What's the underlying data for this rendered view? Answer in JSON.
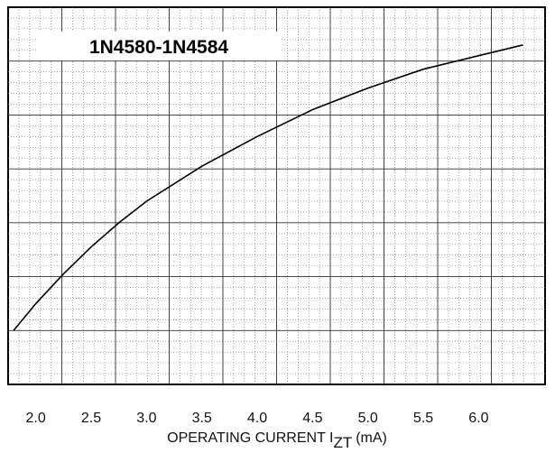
{
  "chart_data": {
    "type": "line",
    "title": "1N4580-1N4584",
    "xlabel": "OPERATING CURRENT I",
    "xlabel_subscript": "ZT",
    "xlabel_unit": "(mA)",
    "ylabel": "",
    "x_ticks": [
      "2.0",
      "2.5",
      "3.0",
      "3.5",
      "4.0",
      "4.5",
      "5.0",
      "5.5",
      "6.0"
    ],
    "xlim": [
      1.75,
      6.6
    ],
    "ylim": [
      0,
      7
    ],
    "grid": true,
    "series": [
      {
        "x": [
          1.8,
          2.0,
          2.25,
          2.5,
          2.75,
          3.0,
          3.5,
          4.0,
          4.5,
          5.0,
          5.5,
          6.0,
          6.4
        ],
        "y": [
          1.0,
          1.5,
          2.05,
          2.55,
          3.0,
          3.4,
          4.05,
          4.6,
          5.1,
          5.5,
          5.85,
          6.1,
          6.3
        ]
      }
    ]
  }
}
